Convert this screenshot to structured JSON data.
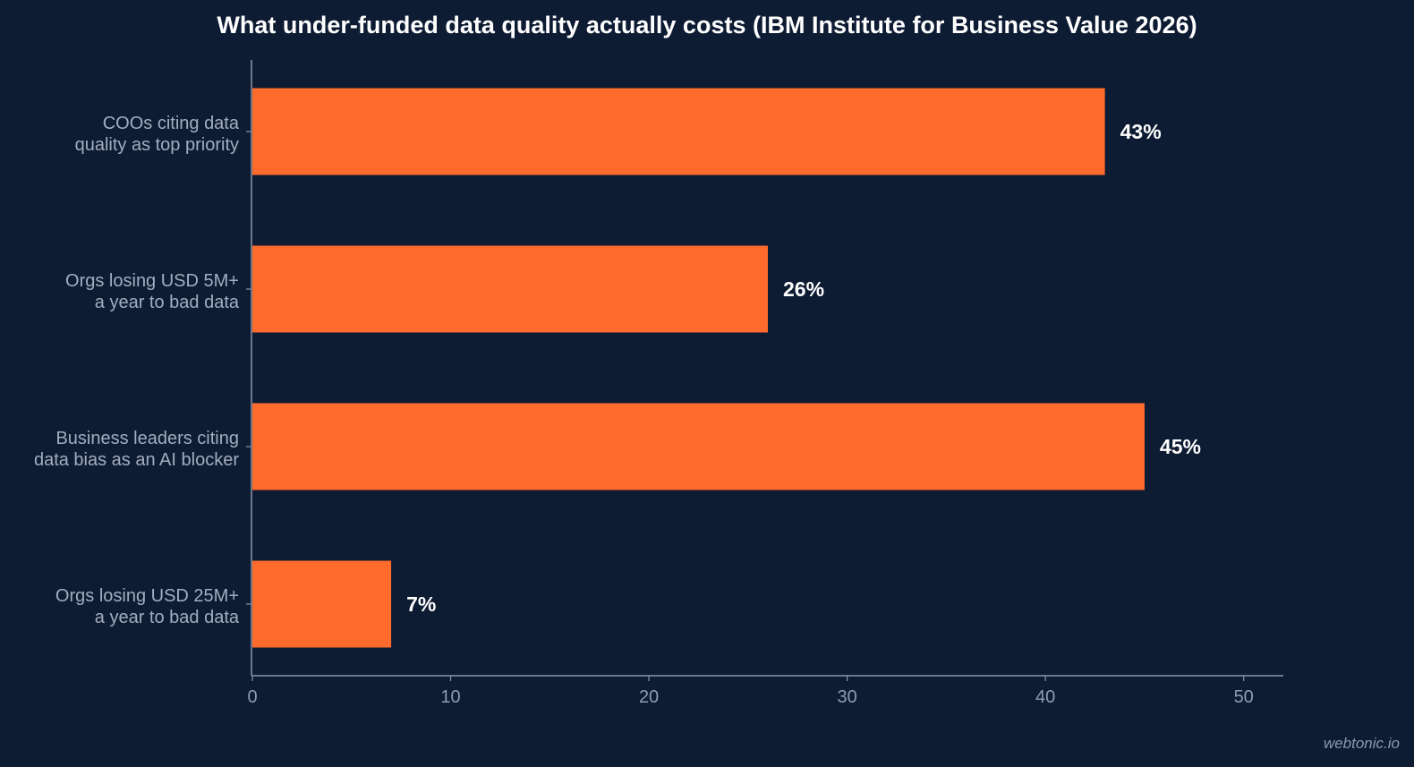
{
  "chart_data": {
    "type": "bar",
    "orientation": "horizontal",
    "title": "What under-funded data quality actually costs (IBM Institute for Business Value 2026)",
    "categories": [
      [
        "COOs citing data",
        "quality as top priority"
      ],
      [
        "Orgs losing USD 5M+",
        "a year to bad data"
      ],
      [
        "Business leaders citing",
        "data bias as an AI blocker"
      ],
      [
        "Orgs losing USD 25M+",
        "a year to bad data"
      ]
    ],
    "values": [
      43,
      26,
      45,
      7
    ],
    "value_labels": [
      "43%",
      "26%",
      "45%",
      "7%"
    ],
    "xlim": [
      0,
      52
    ],
    "xticks": [
      0,
      10,
      20,
      30,
      40,
      50
    ],
    "xlabel": "",
    "ylabel": "",
    "grid": false,
    "colors": {
      "background": "#0d1b33",
      "bar": "#ff6b2c",
      "axis": "#8c96aa",
      "tick_label": "#8f9bb2",
      "category_label": "#a3adbf",
      "value_label": "#ffffff",
      "title": "#ffffff"
    }
  },
  "watermark": "webtonic.io"
}
